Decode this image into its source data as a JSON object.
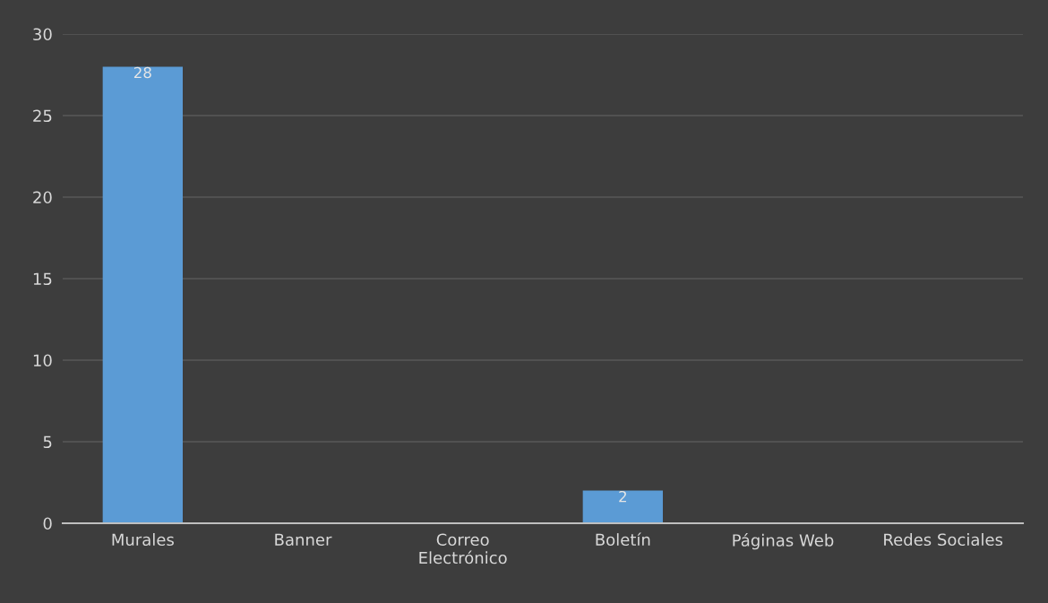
{
  "chart_data": {
    "type": "bar",
    "categories": [
      "Murales",
      "Banner",
      "Correo Electrónico",
      "Boletín",
      "Páginas Web",
      "Redes Sociales"
    ],
    "values": [
      28,
      0,
      0,
      2,
      0,
      0
    ],
    "value_labels": [
      "28",
      null,
      null,
      "2",
      null,
      null
    ],
    "color": "#5b9bd5",
    "ylim": [
      0,
      30
    ],
    "yticks": [
      0,
      5,
      10,
      15,
      20,
      25,
      30
    ],
    "grid": "y"
  }
}
